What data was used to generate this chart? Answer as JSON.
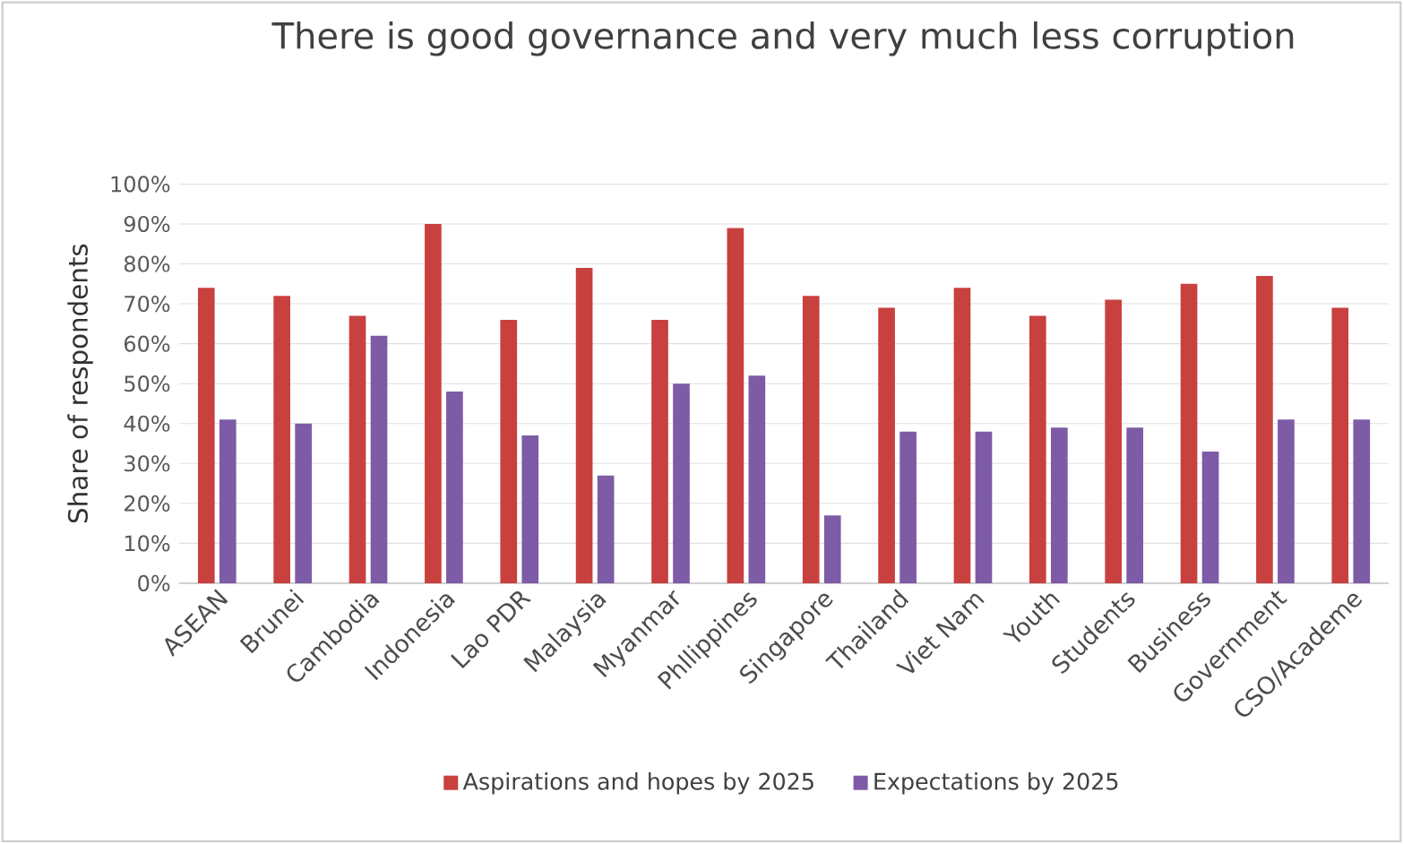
{
  "chart_data": {
    "type": "bar",
    "title": "There is good governance and very much less corruption",
    "ylabel": "Share of respondents",
    "categories": [
      "ASEAN",
      "Brunei",
      "Cambodia",
      "Indonesia",
      "Lao PDR",
      "Malaysia",
      "Myanmar",
      "Phllippines",
      "Singapore",
      "Thailand",
      "Viet Nam",
      "Youth",
      "Students",
      "Business",
      "Government",
      "CSO/Academe"
    ],
    "series": [
      {
        "name": "Aspirations and hopes by 2025",
        "color": "#c8413f",
        "values": [
          74,
          72,
          67,
          90,
          66,
          79,
          66,
          89,
          72,
          69,
          74,
          67,
          71,
          75,
          77,
          69
        ]
      },
      {
        "name": "Expectations by 2025",
        "color": "#7d5ba6",
        "values": [
          41,
          40,
          62,
          48,
          37,
          27,
          50,
          52,
          17,
          38,
          38,
          39,
          39,
          33,
          41,
          41
        ]
      }
    ],
    "ylim": [
      0,
      100
    ],
    "yticks": [
      {
        "value": 0,
        "label": "0%"
      },
      {
        "value": 10,
        "label": "10%"
      },
      {
        "value": 20,
        "label": "20%"
      },
      {
        "value": 30,
        "label": "30%"
      },
      {
        "value": 40,
        "label": "40%"
      },
      {
        "value": 50,
        "label": "50%"
      },
      {
        "value": 60,
        "label": "60%"
      },
      {
        "value": 70,
        "label": "70%"
      },
      {
        "value": 80,
        "label": "80%"
      },
      {
        "value": 90,
        "label": "90%"
      },
      {
        "value": 100,
        "label": "100%"
      }
    ],
    "grid": "y",
    "legend": "bottom"
  }
}
